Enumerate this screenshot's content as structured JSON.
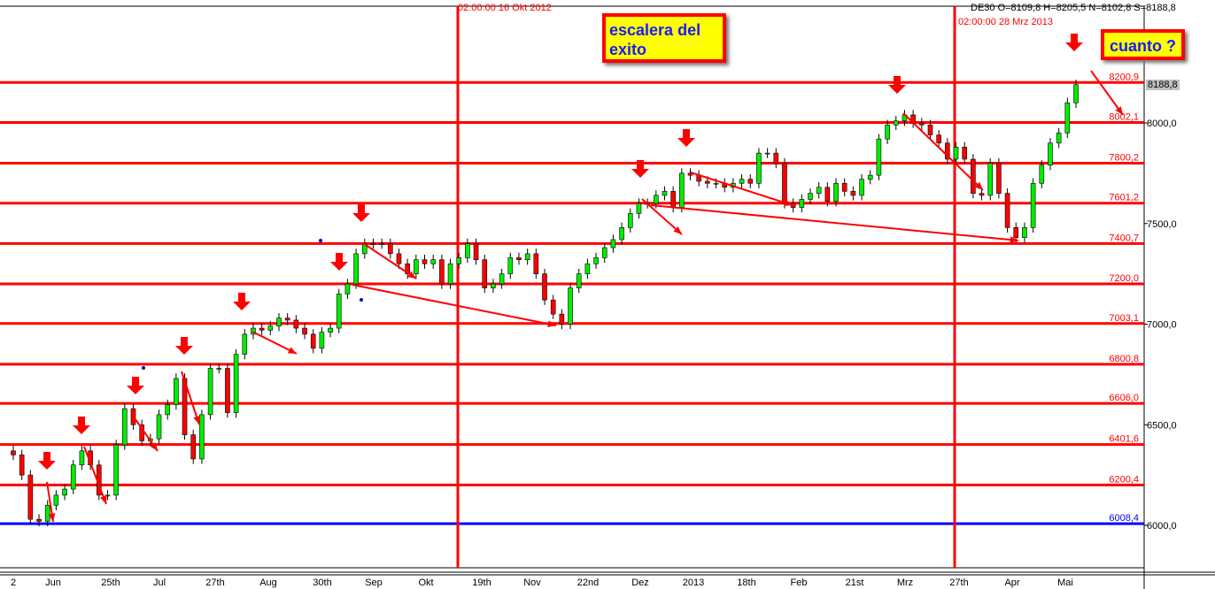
{
  "header": {
    "instrument_info": "DE30 O=8109,8 H=8205,5 N=8102,8 S=8188,8",
    "vline_labels": [
      "02:00:00 16 Okt 2012",
      "02:00:00 28 Mrz 2013"
    ],
    "current_price": "8188,8"
  },
  "annotations": {
    "note_title": "escalera del exito",
    "note_question": "cuanto ?",
    "arrow_color": "#ff0000"
  },
  "chart_data": {
    "type": "candlestick",
    "ylim": [
      5820,
      8380
    ],
    "y_ticks": [
      "8000,0",
      "7500,0",
      "7000,0",
      "6500,0",
      "6000,0"
    ],
    "y_tick_values": [
      8000,
      7500,
      7000,
      6500,
      6000
    ],
    "x_tick_labels": [
      "2",
      "Jun",
      "25th",
      "Jul",
      "27th",
      "Aug",
      "30th",
      "Sep",
      "Okt",
      "19th",
      "Nov",
      "22nd",
      "Dez",
      "2013",
      "18th",
      "Feb",
      "21st",
      "Mrz",
      "27th",
      "Apr",
      "Mai"
    ],
    "closes": [
      6350,
      6250,
      6030,
      6020,
      6100,
      6150,
      6180,
      6300,
      6370,
      6300,
      6150,
      6150,
      6400,
      6580,
      6500,
      6420,
      6430,
      6550,
      6600,
      6730,
      6450,
      6330,
      6550,
      6780,
      6780,
      6560,
      6850,
      6950,
      6980,
      6970,
      6990,
      7030,
      7020,
      6980,
      6950,
      6880,
      6960,
      6980,
      7150,
      7200,
      7350,
      7400,
      7400,
      7400,
      7350,
      7300,
      7250,
      7320,
      7300,
      7320,
      7200,
      7300,
      7330,
      7400,
      7320,
      7180,
      7200,
      7250,
      7330,
      7320,
      7350,
      7250,
      7120,
      7050,
      7000,
      7180,
      7250,
      7300,
      7330,
      7380,
      7420,
      7480,
      7550,
      7600,
      7600,
      7640,
      7660,
      7580,
      7750,
      7740,
      7710,
      7700,
      7700,
      7680,
      7700,
      7720,
      7700,
      7850,
      7850,
      7800,
      7600,
      7580,
      7620,
      7650,
      7680,
      7610,
      7700,
      7660,
      7640,
      7720,
      7740,
      7920,
      7990,
      8010,
      8040,
      8000,
      7990,
      7940,
      7900,
      7820,
      7880,
      7820,
      7650,
      7640,
      7800,
      7650,
      7480,
      7430,
      7480,
      7700,
      7790,
      7900,
      7950,
      8100,
      8190
    ],
    "levels": [
      {
        "value": 8200.9,
        "label": "8200,9",
        "color": "#ff0000"
      },
      {
        "value": 8002.1,
        "label": "8002,1",
        "color": "#ff0000"
      },
      {
        "value": 7800.2,
        "label": "7800,2",
        "color": "#ff0000"
      },
      {
        "value": 7601.2,
        "label": "7601,2",
        "color": "#ff0000"
      },
      {
        "value": 7400.7,
        "label": "7400,7",
        "color": "#ff0000"
      },
      {
        "value": 7200.0,
        "label": "7200,0",
        "color": "#ff0000"
      },
      {
        "value": 7003.1,
        "label": "7003,1",
        "color": "#ff0000"
      },
      {
        "value": 6800.8,
        "label": "6800,8",
        "color": "#ff0000"
      },
      {
        "value": 6606.0,
        "label": "6606,0",
        "color": "#ff0000"
      },
      {
        "value": 6401.6,
        "label": "6401,6",
        "color": "#ff0000"
      },
      {
        "value": 6200.4,
        "label": "6200,4",
        "color": "#ff0000"
      },
      {
        "value": 6008.4,
        "label": "6008,4",
        "color": "#0000ff"
      }
    ],
    "up_color": "#00ee00",
    "down_color": "#ff0000"
  }
}
